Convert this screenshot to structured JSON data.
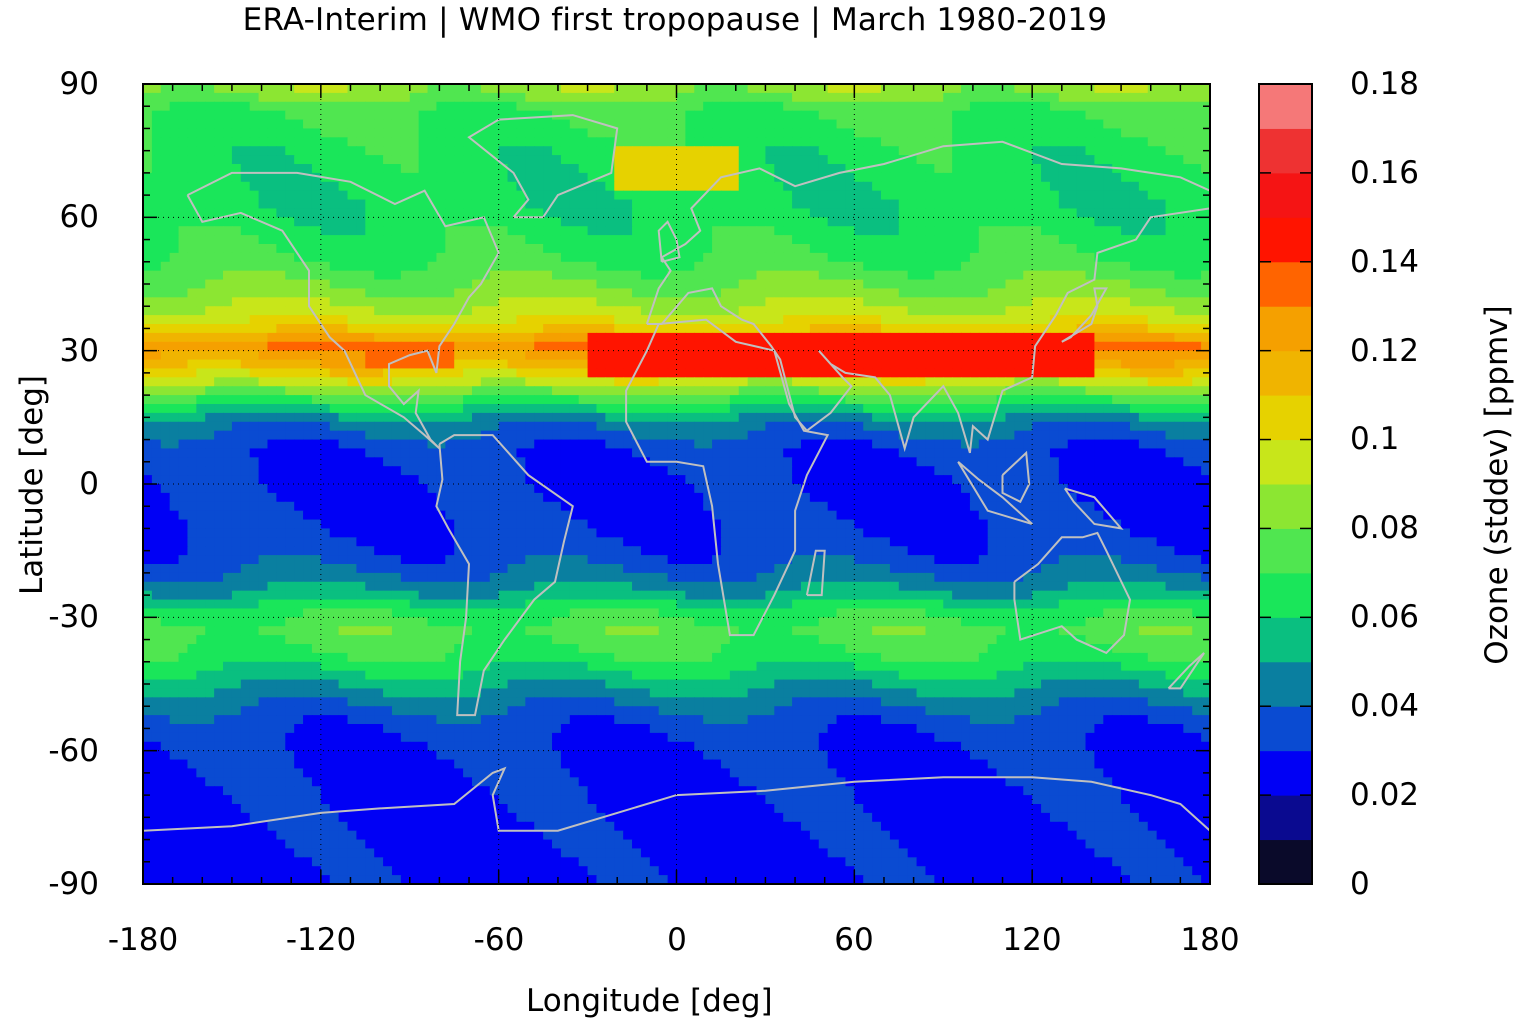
{
  "chart_data": {
    "type": "heatmap",
    "title": "ERA-Interim | WMO first tropopause | March 1980-2019",
    "xlabel": "Longitude [deg]",
    "ylabel": "Latitude [deg]",
    "colorbar_label": "Ozone (stddev) [ppmv]",
    "xlim": [
      -180,
      180
    ],
    "ylim": [
      -90,
      90
    ],
    "x_ticks": [
      "-180",
      "-120",
      "-60",
      "0",
      "60",
      "120",
      "180"
    ],
    "y_ticks": [
      "90",
      "60",
      "30",
      "0",
      "-30",
      "-60",
      "-90"
    ],
    "colorbar_ticks": [
      "0.18",
      "0.16",
      "0.14",
      "0.12",
      "0.1",
      "0.08",
      "0.06",
      "0.04",
      "0.02",
      "0"
    ],
    "color_range": [
      0,
      0.18
    ],
    "colorbar_levels": [
      0.0,
      0.01,
      0.02,
      0.03,
      0.04,
      0.05,
      0.06,
      0.07,
      0.08,
      0.09,
      0.1,
      0.11,
      0.12,
      0.13,
      0.14,
      0.15,
      0.16,
      0.17,
      0.18
    ],
    "colorbar_colors": [
      "#0a0a2a",
      "#0a0a90",
      "#0000f5",
      "#0a4bd2",
      "#0a7fa0",
      "#0abf80",
      "#1ae65a",
      "#50e650",
      "#8ce632",
      "#c8e61a",
      "#e6d200",
      "#f0b400",
      "#f5a000",
      "#ff6400",
      "#ff1400",
      "#f51414",
      "#ee3232",
      "#f57878",
      "#ffd0d0"
    ],
    "grid": true,
    "coastlines": true,
    "latitude_profile": [
      {
        "lat": 88,
        "value": 0.085
      },
      {
        "lat": 84,
        "value": 0.07
      },
      {
        "lat": 75,
        "value": 0.065
      },
      {
        "lat": 62,
        "value": 0.062
      },
      {
        "lat": 50,
        "value": 0.07
      },
      {
        "lat": 42,
        "value": 0.085
      },
      {
        "lat": 36,
        "value": 0.1
      },
      {
        "lat": 31,
        "value": 0.13
      },
      {
        "lat": 27,
        "value": 0.115
      },
      {
        "lat": 22,
        "value": 0.09
      },
      {
        "lat": 18,
        "value": 0.065
      },
      {
        "lat": 14,
        "value": 0.045
      },
      {
        "lat": 8,
        "value": 0.032
      },
      {
        "lat": 0,
        "value": 0.028
      },
      {
        "lat": -10,
        "value": 0.03
      },
      {
        "lat": -18,
        "value": 0.036
      },
      {
        "lat": -24,
        "value": 0.05
      },
      {
        "lat": -28,
        "value": 0.065
      },
      {
        "lat": -33,
        "value": 0.075
      },
      {
        "lat": -38,
        "value": 0.07
      },
      {
        "lat": -44,
        "value": 0.055
      },
      {
        "lat": -48,
        "value": 0.045
      },
      {
        "lat": -53,
        "value": 0.035
      },
      {
        "lat": -58,
        "value": 0.03
      },
      {
        "lat": -64,
        "value": 0.028
      },
      {
        "lat": -75,
        "value": 0.027
      },
      {
        "lat": -85,
        "value": 0.026
      },
      {
        "lat": -90,
        "value": 0.026
      }
    ],
    "features": [
      {
        "name": "subtropical-jet-max-atlantic-asia",
        "lon": [
          -30,
          140
        ],
        "lat": [
          24,
          33
        ],
        "value": 0.145
      },
      {
        "name": "subtropical-jet-max-north-america",
        "lon": [
          -105,
          -75
        ],
        "lat": [
          26,
          32
        ],
        "value": 0.135
      },
      {
        "name": "arctic-europe-max",
        "lon": [
          -20,
          20
        ],
        "lat": [
          66,
          76
        ],
        "value": 0.1
      }
    ]
  }
}
